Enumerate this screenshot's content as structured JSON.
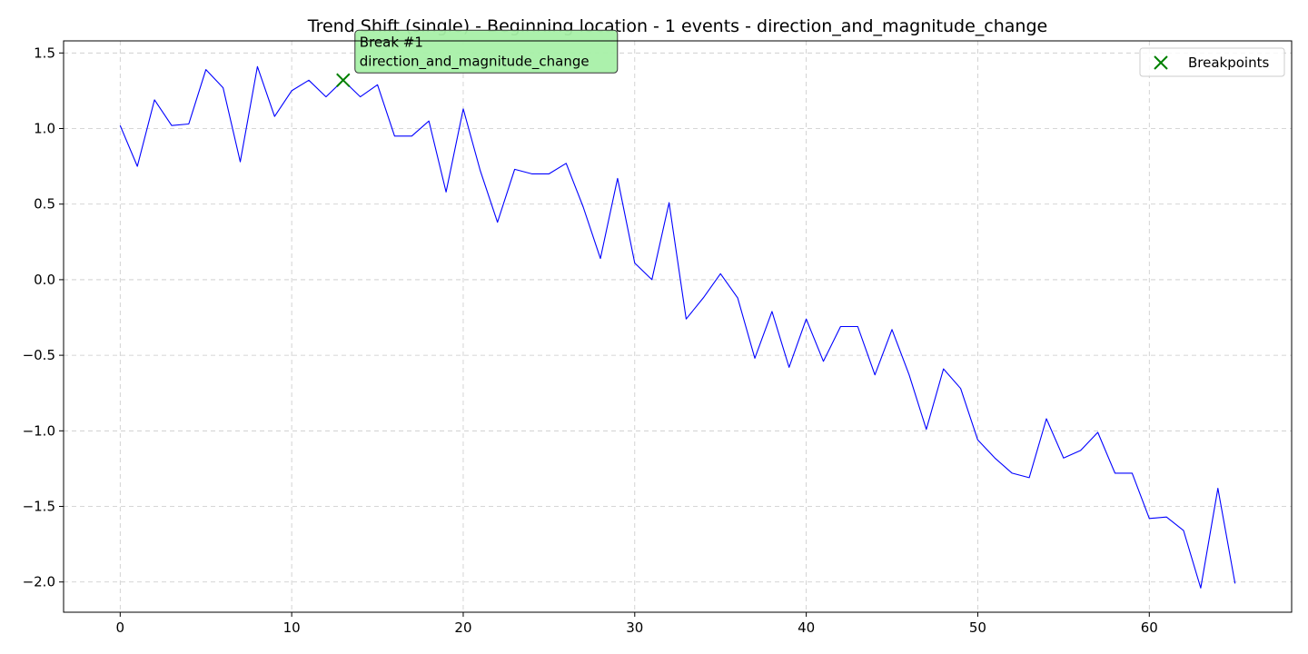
{
  "chart_data": {
    "type": "line",
    "title": "Trend Shift (single) - Beginning location - 1 events - direction_and_magnitude_change",
    "xlabel": "",
    "ylabel": "",
    "xlim": [
      -3.3,
      68.3
    ],
    "ylim": [
      -2.2,
      1.58
    ],
    "x_ticks": [
      0,
      10,
      20,
      30,
      40,
      50,
      60
    ],
    "y_ticks": [
      -2.0,
      -1.5,
      -1.0,
      -0.5,
      0.0,
      0.5,
      1.0,
      1.5
    ],
    "y_tick_labels": [
      "−2.0",
      "−1.5",
      "−1.0",
      "−0.5",
      "0.0",
      "0.5",
      "1.0",
      "1.5"
    ],
    "x_tick_labels": [
      "0",
      "10",
      "20",
      "30",
      "40",
      "50",
      "60"
    ],
    "grid": true,
    "legend_position": "top-right",
    "series": [
      {
        "color": "#0000ff",
        "x": [
          0,
          1,
          2,
          3,
          4,
          5,
          6,
          7,
          8,
          9,
          10,
          11,
          12,
          13,
          14,
          15,
          16,
          17,
          18,
          19,
          20,
          21,
          22,
          23,
          24,
          25,
          26,
          27,
          28,
          29,
          30,
          31,
          32,
          33,
          34,
          35,
          36,
          37,
          38,
          39,
          40,
          41,
          42,
          43,
          44,
          45,
          46,
          47,
          48,
          49,
          50,
          51,
          52,
          53,
          54,
          55,
          56,
          57,
          58,
          59,
          60,
          61,
          62,
          63,
          64,
          65
        ],
        "values": [
          1.02,
          0.75,
          1.19,
          1.02,
          1.03,
          1.39,
          1.27,
          0.78,
          1.41,
          1.08,
          1.25,
          1.32,
          1.21,
          1.32,
          1.21,
          1.29,
          0.95,
          0.95,
          1.05,
          0.58,
          1.13,
          0.72,
          0.38,
          0.73,
          0.7,
          0.7,
          0.77,
          0.48,
          0.14,
          0.67,
          0.11,
          0.0,
          0.51,
          -0.26,
          -0.12,
          0.04,
          -0.12,
          -0.52,
          -0.21,
          -0.58,
          -0.26,
          -0.54,
          -0.31,
          -0.31,
          -0.63,
          -0.33,
          -0.63,
          -0.99,
          -0.59,
          -0.72,
          -1.06,
          -1.18,
          -1.28,
          -1.31,
          -0.92,
          -1.18,
          -1.13,
          -1.01,
          -1.28,
          -1.28,
          -1.58,
          -1.57,
          -1.66,
          -2.04,
          -1.38,
          -2.01
        ]
      }
    ],
    "breakpoints": {
      "name": "Breakpoints",
      "color": "#008000",
      "points": [
        {
          "x": 13,
          "y": 1.32
        }
      ]
    },
    "annotations": [
      {
        "line1": "Break #1",
        "line2": "direction_and_magnitude_change",
        "box_color": "#a8f0a8"
      }
    ]
  }
}
